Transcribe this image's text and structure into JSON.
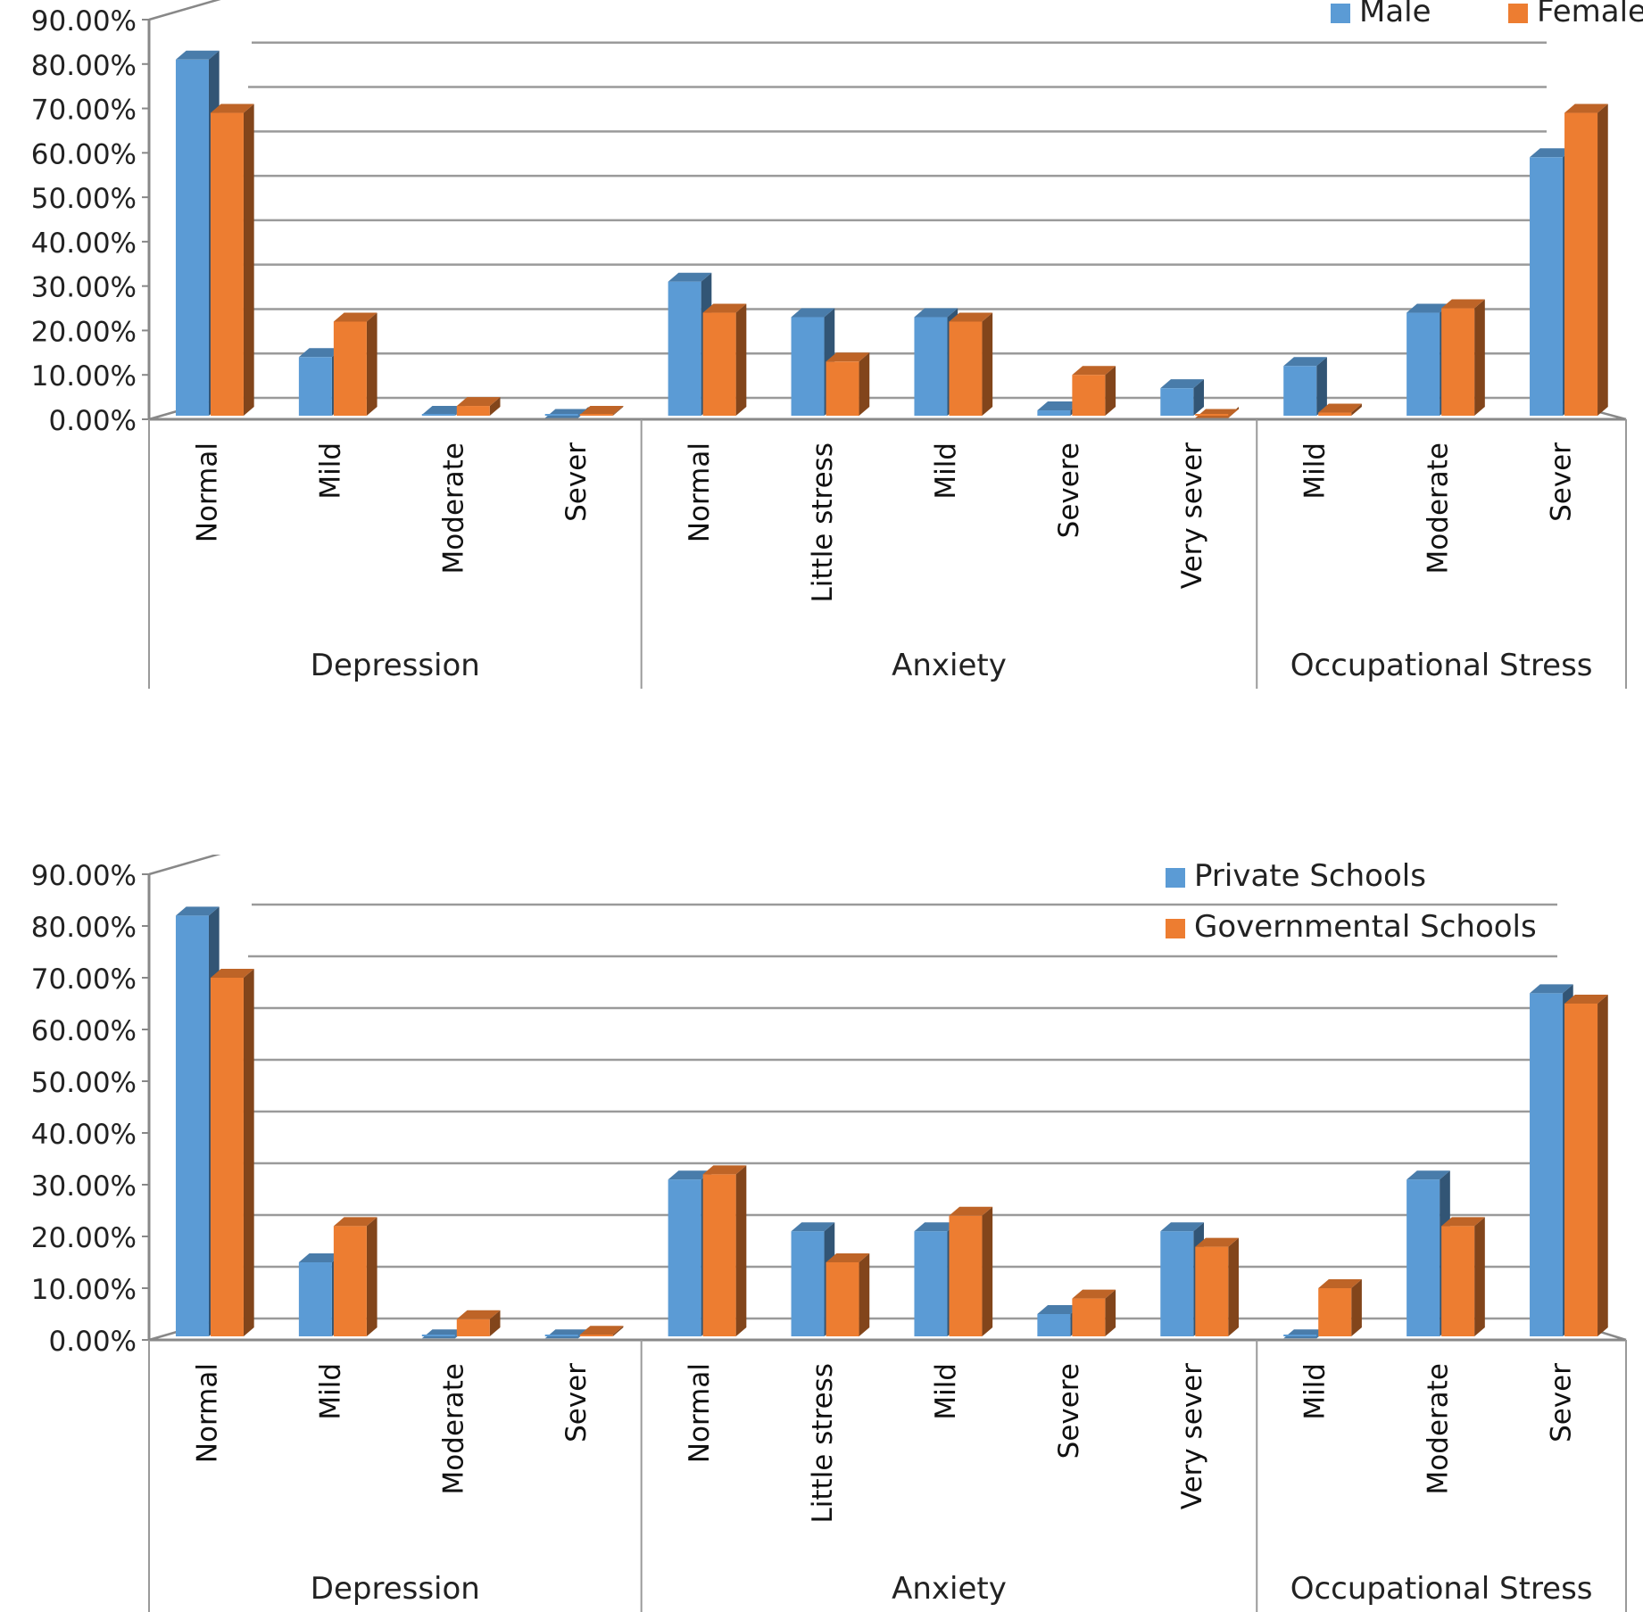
{
  "chart_data": [
    {
      "type": "bar",
      "y_ticks": [
        "0.00%",
        "10.00%",
        "20.00%",
        "30.00%",
        "40.00%",
        "50.00%",
        "60.00%",
        "70.00%",
        "80.00%",
        "90.00%"
      ],
      "ylim": [
        0,
        90
      ],
      "grid": true,
      "legend": "top-right",
      "groups": [
        {
          "name": "Depression",
          "categories": [
            "Normal",
            "Mild",
            "Moderate",
            "Sever"
          ]
        },
        {
          "name": "Anxiety",
          "categories": [
            "Normal",
            "Little stress",
            "Mild",
            "Severe",
            "Very sever"
          ]
        },
        {
          "name": "Occupational Stress",
          "categories": [
            "Mild",
            "Moderate",
            "Sever"
          ]
        }
      ],
      "series": [
        {
          "name": "Male",
          "color": "#5B9BD5",
          "values": [
            81,
            14,
            1,
            0.3,
            31,
            23,
            23,
            2,
            7,
            12,
            24,
            59
          ]
        },
        {
          "name": "Female",
          "color": "#ED7D31",
          "values": [
            69,
            22,
            3,
            1,
            24,
            13,
            22,
            10,
            0.3,
            1.5,
            25,
            69
          ]
        }
      ]
    },
    {
      "type": "bar",
      "y_ticks": [
        "0.00%",
        "10.00%",
        "20.00%",
        "30.00%",
        "40.00%",
        "50.00%",
        "60.00%",
        "70.00%",
        "80.00%",
        "90.00%"
      ],
      "ylim": [
        0,
        90
      ],
      "grid": true,
      "legend": "top-right",
      "groups": [
        {
          "name": "Depression",
          "categories": [
            "Normal",
            "Mild",
            "Moderate",
            "Sever"
          ]
        },
        {
          "name": "Anxiety",
          "categories": [
            "Normal",
            "Little stress",
            "Mild",
            "Severe",
            "Very sever"
          ]
        },
        {
          "name": "Occupational Stress",
          "categories": [
            "Mild",
            "Moderate",
            "Sever"
          ]
        }
      ],
      "series": [
        {
          "name": "Private Schools",
          "color": "#5B9BD5",
          "values": [
            82,
            15,
            0.3,
            0.3,
            31,
            21,
            21,
            5,
            21,
            0.3,
            31,
            67
          ]
        },
        {
          "name": "Governmental Schools",
          "color": "#ED7D31",
          "values": [
            70,
            22,
            4,
            1,
            32,
            15,
            24,
            8,
            18,
            10,
            22,
            65
          ]
        }
      ]
    }
  ]
}
